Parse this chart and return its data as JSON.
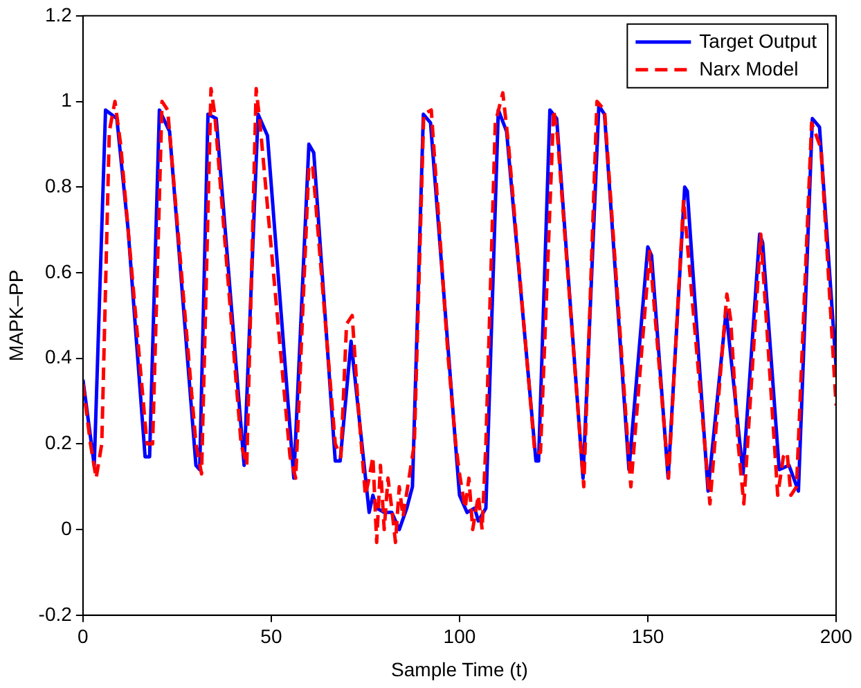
{
  "chart_data": {
    "type": "line",
    "xlabel": "Sample Time (t)",
    "ylabel": "MAPK–PP",
    "xlim": [
      0,
      200
    ],
    "xticks": [
      0,
      50,
      100,
      150,
      200
    ],
    "ylim": [
      -0.2,
      1.2
    ],
    "yticks": [
      -0.2,
      0,
      0.2,
      0.4,
      0.6,
      0.8,
      1,
      1.2
    ],
    "legend": "top right",
    "series": [
      {
        "name": "Target Output",
        "color": "#0000ff",
        "line_style": "solid",
        "x": [
          0,
          3,
          6,
          9,
          12,
          16.5,
          17.7,
          20.3,
          23,
          30,
          31,
          33.2,
          35.4,
          42.8,
          46.5,
          49,
          56,
          60,
          61.3,
          67,
          68.3,
          71.2,
          76,
          77,
          78,
          80,
          82,
          84,
          86,
          87.5,
          90.4,
          92.3,
          100,
          102,
          104,
          105,
          107,
          110.3,
          112.5,
          120.3,
          121,
          124,
          125.8,
          132.8,
          137,
          138.5,
          145,
          150,
          151,
          155.4,
          159.8,
          160.5,
          166,
          170.8,
          175.3,
          179.7,
          180.5,
          184.9,
          187.5,
          190,
          193.7,
          195.6,
          200
        ],
        "values": [
          0.35,
          0.15,
          0.98,
          0.96,
          0.7,
          0.17,
          0.17,
          0.98,
          0.93,
          0.15,
          0.14,
          0.97,
          0.96,
          0.15,
          0.97,
          0.92,
          0.12,
          0.9,
          0.88,
          0.16,
          0.16,
          0.44,
          0.04,
          0.08,
          0.05,
          0.04,
          0.04,
          0.0,
          0.05,
          0.1,
          0.97,
          0.95,
          0.08,
          0.04,
          0.05,
          0.02,
          0.05,
          0.98,
          0.93,
          0.16,
          0.16,
          0.98,
          0.96,
          0.12,
          0.99,
          0.97,
          0.14,
          0.66,
          0.64,
          0.12,
          0.8,
          0.79,
          0.09,
          0.51,
          0.13,
          0.69,
          0.67,
          0.14,
          0.15,
          0.09,
          0.96,
          0.94,
          0.38
        ]
      },
      {
        "name": "Narx Model",
        "color": "#ff0000",
        "line_style": "dashed",
        "x": [
          0,
          2,
          3.5,
          5,
          7,
          8.5,
          10,
          17,
          18.5,
          21,
          22.5,
          30,
          31.5,
          34,
          35,
          42,
          43.5,
          46,
          47,
          55,
          56.5,
          60,
          61,
          67,
          68.5,
          70,
          71.5,
          73,
          75,
          76,
          77,
          78,
          79,
          80,
          81,
          82,
          83,
          84,
          85,
          88,
          90.5,
          92.5,
          97,
          99,
          100,
          101.5,
          102.5,
          103.5,
          105,
          106,
          107,
          109.5,
          111.5,
          113,
          120,
          121.5,
          125,
          126,
          133,
          136.5,
          138.5,
          145.5,
          150.5,
          155.5,
          159.5,
          166.5,
          171,
          172,
          174,
          175.5,
          180,
          184.5,
          186,
          187,
          188,
          189.5,
          193.5,
          196,
          200
        ],
        "values": [
          0.34,
          0.2,
          0.12,
          0.2,
          0.93,
          1.0,
          0.9,
          0.2,
          0.2,
          1.0,
          0.98,
          0.2,
          0.13,
          1.03,
          0.97,
          0.2,
          0.15,
          1.03,
          0.95,
          0.17,
          0.12,
          0.85,
          0.85,
          0.2,
          0.17,
          0.48,
          0.5,
          0.3,
          0.08,
          0.12,
          0.17,
          -0.03,
          0.15,
          0.0,
          0.12,
          0.05,
          -0.03,
          0.1,
          0.03,
          0.2,
          0.97,
          0.98,
          0.4,
          0.2,
          0.13,
          0.05,
          0.12,
          0.0,
          0.08,
          0.0,
          0.2,
          0.95,
          1.02,
          0.9,
          0.18,
          0.18,
          0.98,
          0.92,
          0.1,
          1.0,
          0.98,
          0.1,
          0.65,
          0.12,
          0.77,
          0.06,
          0.55,
          0.49,
          0.2,
          0.06,
          0.69,
          0.08,
          0.17,
          0.18,
          0.08,
          0.1,
          0.95,
          0.89,
          0.29
        ]
      }
    ]
  }
}
